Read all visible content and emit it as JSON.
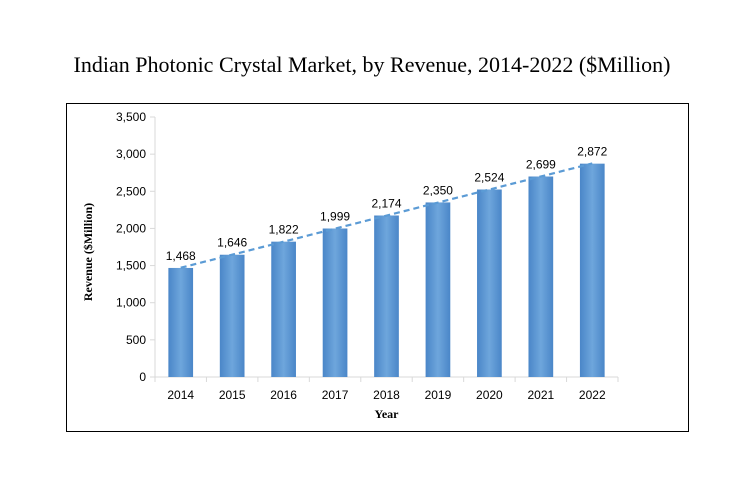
{
  "chart_data": {
    "type": "bar",
    "title": "Indian Photonic Crystal Market, by Revenue, 2014-2022 ($Million)",
    "xlabel": "Year",
    "ylabel": "Revenue ($Million)",
    "categories": [
      "2014",
      "2015",
      "2016",
      "2017",
      "2018",
      "2019",
      "2020",
      "2021",
      "2022"
    ],
    "values": [
      1468,
      1646,
      1822,
      1999,
      2174,
      2350,
      2524,
      2699,
      2872
    ],
    "data_labels": [
      "1,468",
      "1,646",
      "1,822",
      "1,999",
      "2,174",
      "2,350",
      "2,524",
      "2,699",
      "2,872"
    ],
    "ylim": [
      0,
      3500
    ],
    "yticks": [
      0,
      500,
      1000,
      1500,
      2000,
      2500,
      3000,
      3500
    ],
    "ytick_labels": [
      "0",
      "500",
      "1,000",
      "1,500",
      "2,000",
      "2,500",
      "3,000",
      "3,500"
    ],
    "grid": false,
    "legend": "none",
    "trendline": "linear dashed",
    "bar_color": "#5b9bd5",
    "trend_color": "#5b9bd5",
    "axis_color": "#d9d9d9"
  }
}
